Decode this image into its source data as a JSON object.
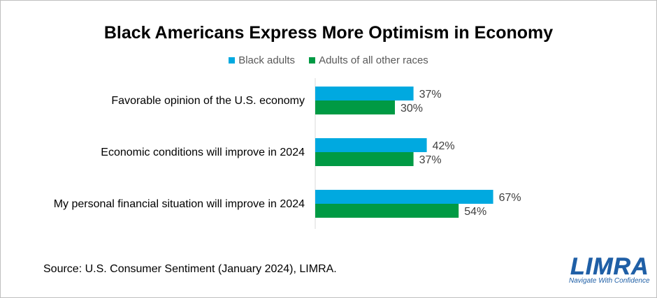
{
  "chart_data": {
    "type": "bar",
    "orientation": "horizontal",
    "title": "Black Americans Express More Optimism in Economy",
    "categories": [
      "Favorable opinion of the U.S. economy",
      "Economic conditions will improve in 2024",
      "My personal financial situation will improve in 2024"
    ],
    "series": [
      {
        "name": "Black adults",
        "color": "#00a9e0",
        "values": [
          37,
          42,
          67
        ],
        "labels": [
          "37%",
          "42%",
          "67%"
        ]
      },
      {
        "name": "Adults of all other races",
        "color": "#009a44",
        "values": [
          30,
          37,
          54
        ],
        "labels": [
          "30%",
          "37%",
          "54%"
        ]
      }
    ],
    "xlim": [
      0,
      100
    ],
    "grid": false,
    "legend_position": "top"
  },
  "footer": {
    "source": "Source: U.S. Consumer Sentiment (January 2024), LIMRA."
  },
  "logo": {
    "name": "LIMRA",
    "tagline": "Navigate With Confidence",
    "color": "#1f5fa6"
  }
}
